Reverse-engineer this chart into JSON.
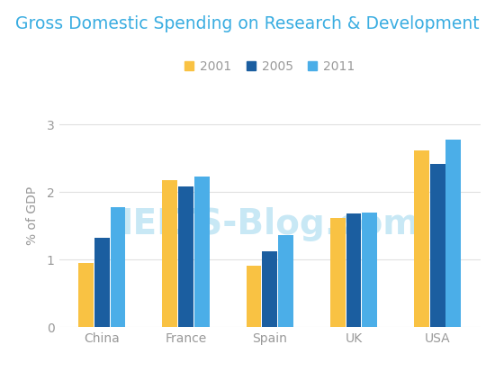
{
  "title": "Gross Domestic Spending on Research & Development",
  "ylabel": "% of GDP",
  "categories": [
    "China",
    "France",
    "Spain",
    "UK",
    "USA"
  ],
  "years": [
    "2001",
    "2005",
    "2011"
  ],
  "values": {
    "2001": [
      0.95,
      2.17,
      0.91,
      1.62,
      2.62
    ],
    "2005": [
      1.33,
      2.08,
      1.13,
      1.68,
      2.42
    ],
    "2011": [
      1.78,
      2.23,
      1.36,
      1.7,
      2.77
    ]
  },
  "bar_colors": {
    "2001": "#F9C243",
    "2005": "#1B5EA0",
    "2011": "#4BAEE8"
  },
  "ylim": [
    0,
    3.3
  ],
  "yticks": [
    0,
    1,
    2,
    3
  ],
  "background_color": "#ffffff",
  "title_color": "#3AADE1",
  "bar_width": 0.18,
  "watermark": "IELTS-Blog.com",
  "watermark_color": "#c8e8f5",
  "watermark_fontsize": 28,
  "tick_color": "#aaaaaa",
  "grid_color": "#e0e0e0",
  "label_color": "#999999"
}
